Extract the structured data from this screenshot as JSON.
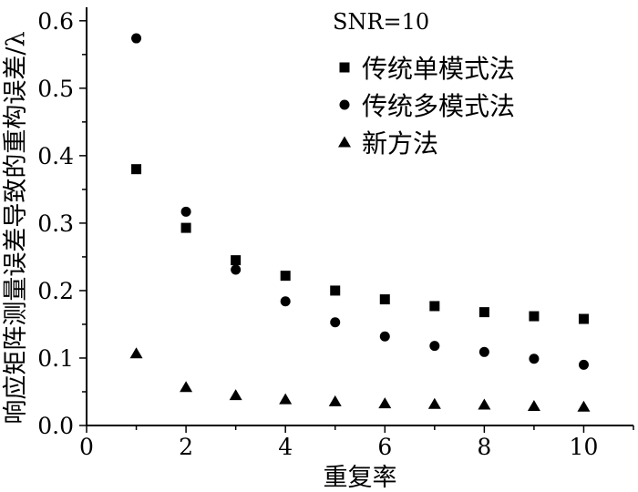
{
  "chart_data": {
    "type": "scatter",
    "annotation": "SNR=10",
    "xlabel": "重复率",
    "ylabel": "响应矩阵测量误差导致的重构误差/λ",
    "xlim": [
      0,
      11
    ],
    "ylim": [
      0,
      0.62
    ],
    "xticks": [
      0,
      2,
      4,
      6,
      8,
      10
    ],
    "yticks": [
      0.0,
      0.1,
      0.2,
      0.3,
      0.4,
      0.5,
      0.6
    ],
    "xtick_labels": [
      "0",
      "2",
      "4",
      "6",
      "8",
      "10"
    ],
    "ytick_labels": [
      "0.0",
      "0.1",
      "0.2",
      "0.3",
      "0.4",
      "0.5",
      "0.6"
    ],
    "legend_position": "top-right",
    "x": [
      1,
      2,
      3,
      4,
      5,
      6,
      7,
      8,
      9,
      10
    ],
    "series": [
      {
        "name": "传统单模式法",
        "marker": "square",
        "values": [
          0.38,
          0.293,
          0.245,
          0.222,
          0.2,
          0.187,
          0.177,
          0.168,
          0.162,
          0.158
        ]
      },
      {
        "name": "传统多模式法",
        "marker": "circle",
        "values": [
          0.574,
          0.317,
          0.231,
          0.184,
          0.153,
          0.132,
          0.118,
          0.109,
          0.099,
          0.09
        ]
      },
      {
        "name": "新方法",
        "marker": "triangle",
        "values": [
          0.107,
          0.057,
          0.045,
          0.039,
          0.036,
          0.033,
          0.032,
          0.031,
          0.029,
          0.028
        ]
      }
    ]
  }
}
